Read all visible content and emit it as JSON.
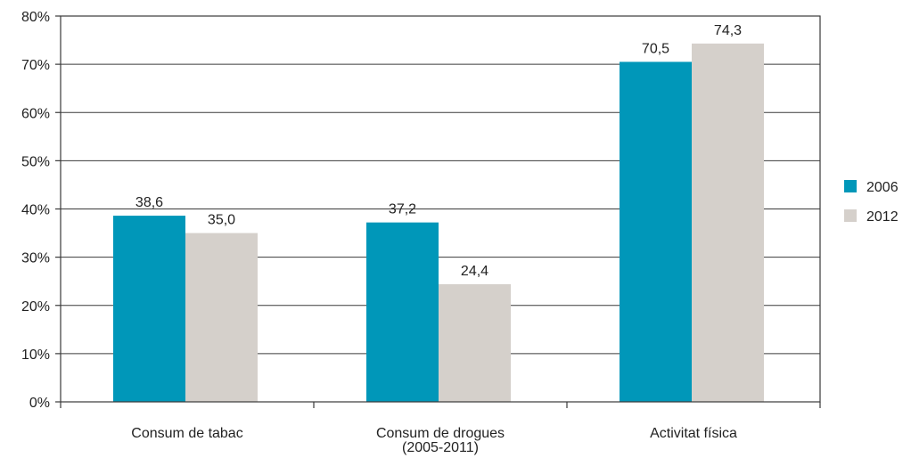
{
  "chart_data": {
    "type": "bar",
    "categories": [
      [
        "Consum de tabac"
      ],
      [
        "Consum de drogues",
        "(2005-2011)"
      ],
      [
        "Activitat física"
      ]
    ],
    "series": [
      {
        "name": "2006",
        "values": [
          38.6,
          37.2,
          70.5
        ],
        "labels": [
          "38,6",
          "37,2",
          "70,5"
        ],
        "color": "#0097b9"
      },
      {
        "name": "2012",
        "values": [
          35.0,
          24.4,
          74.3
        ],
        "labels": [
          "35,0",
          "24,4",
          "74,3"
        ],
        "color": "#d5d0cb"
      }
    ],
    "y_ticks": [
      "0%",
      "10%",
      "20%",
      "30%",
      "40%",
      "50%",
      "60%",
      "70%",
      "80%"
    ],
    "ylim": [
      0,
      80
    ],
    "grid": true,
    "legend_position": "right"
  }
}
